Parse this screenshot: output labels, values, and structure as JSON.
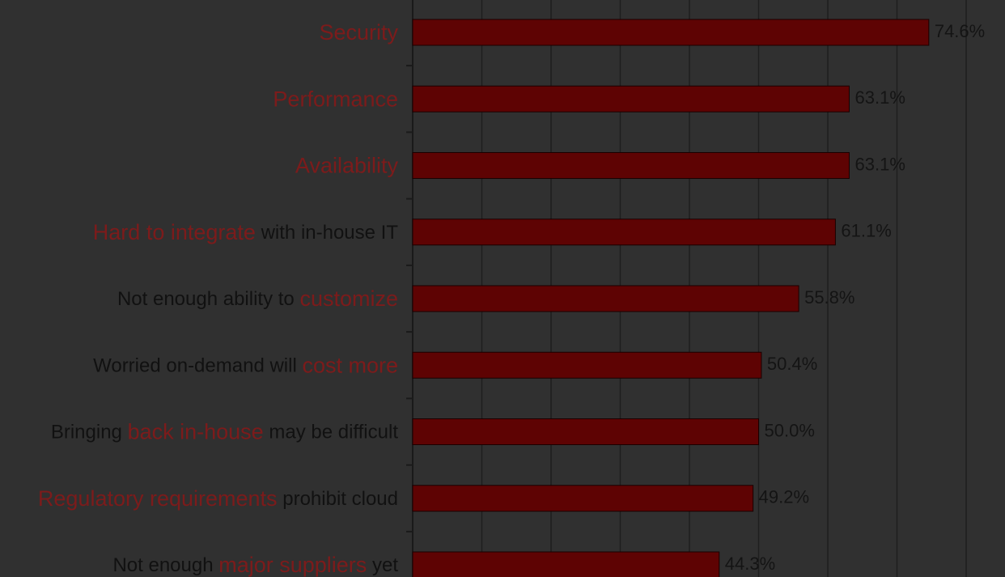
{
  "chart_data": {
    "type": "hbar",
    "categories": [
      "Security",
      "Performance",
      "Availability",
      "Hard to integrate with in-house IT",
      "Not enough ability to customize",
      "Worried on-demand will cost more",
      "Bringing back in-house may be difficult",
      "Regulatory requirements prohibit cloud",
      "Not enough major suppliers yet"
    ],
    "category_highlights": [
      "Security",
      "Performance",
      "Availability",
      "Hard to integrate",
      "customize",
      "cost more",
      "back in-house",
      "Regulatory requirements",
      "major suppliers"
    ],
    "values": [
      74.6,
      63.1,
      63.1,
      61.1,
      55.8,
      50.4,
      50.0,
      49.2,
      44.3
    ],
    "value_labels": [
      "74.6%",
      "63.1%",
      "63.1%",
      "61.1%",
      "55.8%",
      "50.4%",
      "50.0%",
      "49.2%",
      "44.3%"
    ],
    "color": "#5e0303",
    "highlight_color": "#7c1b1b",
    "xlim": [
      0,
      80
    ],
    "xticks": [
      0,
      10,
      20,
      30,
      40,
      50,
      60,
      70,
      80
    ],
    "grid": true
  }
}
